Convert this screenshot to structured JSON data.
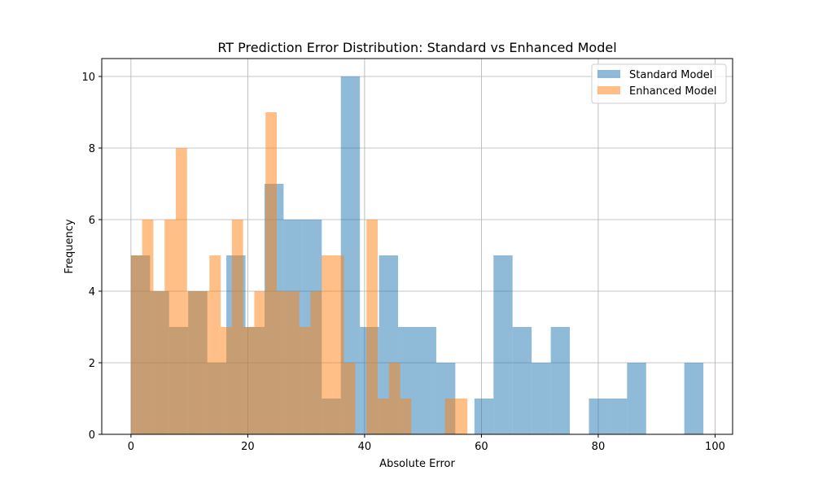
{
  "chart_data": {
    "type": "bar",
    "title": "RT Prediction Error Distribution: Standard vs Enhanced Model",
    "xlabel": "Absolute Error",
    "ylabel": "Frequency",
    "xlim": [
      -5,
      103
    ],
    "ylim": [
      0,
      10.5
    ],
    "xticks": [
      0,
      20,
      40,
      60,
      80,
      100
    ],
    "yticks": [
      0,
      2,
      4,
      6,
      8,
      10
    ],
    "grid": true,
    "legend_position": "top-right",
    "series": [
      {
        "name": "Standard Model",
        "color": "#1f77b4",
        "opacity": 0.5,
        "bin_edges": [
          0.0,
          3.27,
          6.53,
          9.8,
          13.07,
          16.33,
          19.6,
          22.87,
          26.13,
          29.4,
          32.67,
          35.93,
          39.2,
          42.47,
          45.73,
          49.0,
          52.27,
          55.53,
          58.8,
          62.07,
          65.33,
          68.6,
          71.87,
          75.13,
          78.4,
          81.67,
          84.93,
          88.2,
          91.47,
          94.73,
          98.0
        ],
        "counts": [
          5,
          4,
          3,
          4,
          2,
          5,
          3,
          7,
          6,
          6,
          1,
          10,
          3,
          5,
          3,
          3,
          2,
          0,
          1,
          5,
          3,
          2,
          3,
          0,
          1,
          1,
          2,
          0,
          0,
          2
        ]
      },
      {
        "name": "Enhanced Model",
        "color": "#ff7f0e",
        "opacity": 0.5,
        "bin_edges": [
          0.0,
          1.92,
          3.84,
          5.76,
          7.68,
          9.6,
          11.52,
          13.44,
          15.36,
          17.28,
          19.2,
          21.12,
          23.04,
          24.96,
          26.88,
          28.8,
          30.72,
          32.64,
          34.56,
          36.48,
          38.4,
          40.32,
          42.24,
          44.16,
          46.08,
          48.0,
          49.92,
          51.84,
          53.76,
          55.68,
          57.6
        ],
        "counts": [
          5,
          6,
          4,
          6,
          8,
          4,
          4,
          5,
          3,
          6,
          3,
          4,
          9,
          4,
          4,
          3,
          4,
          5,
          5,
          2,
          0,
          6,
          1,
          2,
          1,
          0,
          0,
          0,
          1,
          1
        ]
      }
    ]
  }
}
